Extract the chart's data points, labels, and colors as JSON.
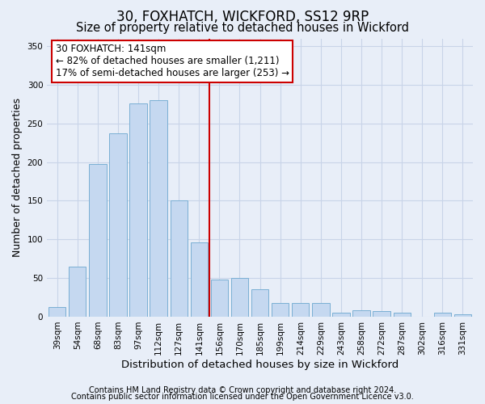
{
  "title1": "30, FOXHATCH, WICKFORD, SS12 9RP",
  "title2": "Size of property relative to detached houses in Wickford",
  "xlabel": "Distribution of detached houses by size in Wickford",
  "ylabel": "Number of detached properties",
  "footnote1": "Contains HM Land Registry data © Crown copyright and database right 2024.",
  "footnote2": "Contains public sector information licensed under the Open Government Licence v3.0.",
  "annotation_line1": "30 FOXHATCH: 141sqm",
  "annotation_line2": "← 82% of detached houses are smaller (1,211)",
  "annotation_line3": "17% of semi-detached houses are larger (253) →",
  "bar_labels": [
    "39sqm",
    "54sqm",
    "68sqm",
    "83sqm",
    "97sqm",
    "112sqm",
    "127sqm",
    "141sqm",
    "156sqm",
    "170sqm",
    "185sqm",
    "199sqm",
    "214sqm",
    "229sqm",
    "243sqm",
    "258sqm",
    "272sqm",
    "287sqm",
    "302sqm",
    "316sqm",
    "331sqm"
  ],
  "bar_values": [
    12,
    65,
    198,
    237,
    276,
    280,
    150,
    96,
    48,
    50,
    36,
    18,
    18,
    18,
    5,
    8,
    7,
    5,
    0,
    5,
    3
  ],
  "bar_color": "#c5d8f0",
  "bar_edge_color": "#7aafd4",
  "vline_color": "#cc0000",
  "vline_x_index": 7,
  "ylim": [
    0,
    360
  ],
  "yticks": [
    0,
    50,
    100,
    150,
    200,
    250,
    300,
    350
  ],
  "grid_color": "#c8d4e8",
  "background_color": "#e8eef8",
  "box_facecolor": "#ffffff",
  "box_edgecolor": "#cc0000",
  "title1_fontsize": 12,
  "title2_fontsize": 10.5,
  "annotation_fontsize": 8.5,
  "tick_fontsize": 7.5,
  "ylabel_fontsize": 9,
  "xlabel_fontsize": 9.5,
  "footnote_fontsize": 7
}
